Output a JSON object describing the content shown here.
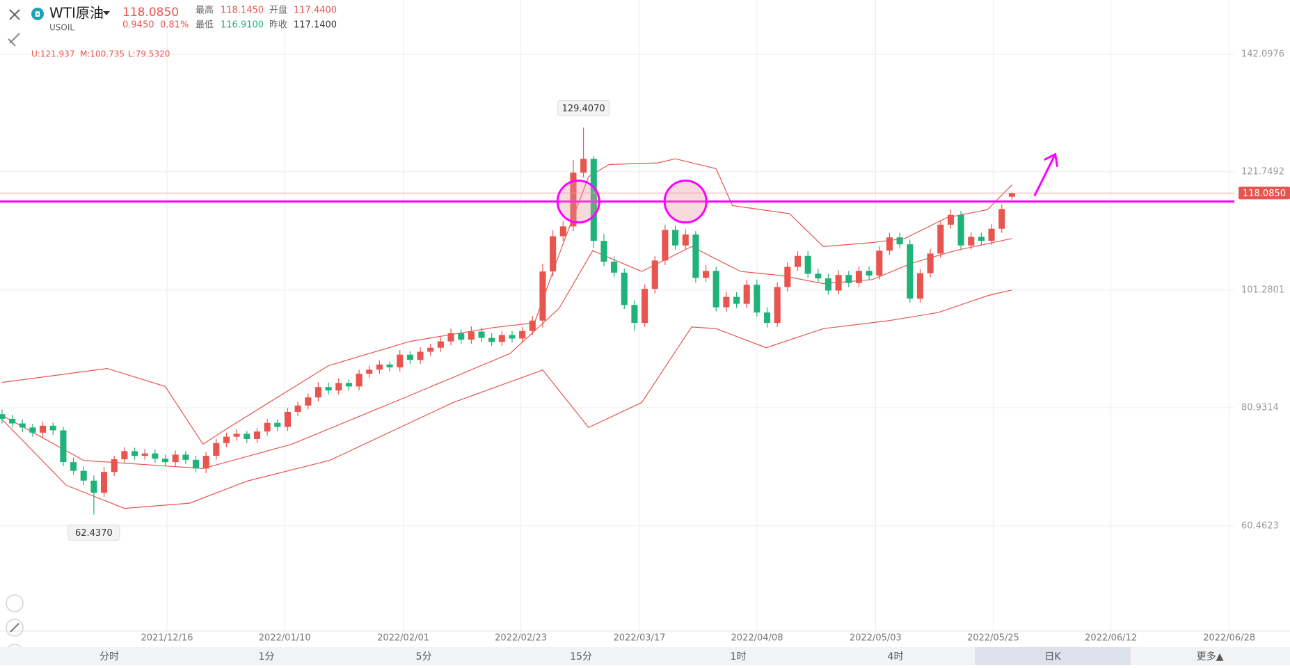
{
  "header": {
    "title": "WTI原油",
    "symbol": "USOIL",
    "price": "118.0850",
    "change": "0.9450",
    "change_pct": "0.81%",
    "stats": [
      {
        "label": "最高",
        "value": "118.1450"
      },
      {
        "label": "开盘",
        "value": "117.4400"
      },
      {
        "label": "最低",
        "value": "116.9100"
      },
      {
        "label": "昨收",
        "value": "117.1400"
      }
    ]
  },
  "tabs": [
    "分时",
    "1分",
    "5分",
    "15分",
    "1时",
    "4时",
    "日K",
    "更多▲"
  ],
  "chart_data": {
    "type": "candlestick",
    "band_labels": [
      "U:121.937",
      "M:100.735",
      "L:79.5320"
    ],
    "up_color": "#e8544e",
    "down_color": "#1fb27a",
    "xlim": [
      -0.2,
      120.8
    ],
    "xticks": [
      {
        "value": 16.17,
        "label": "2021/12/16"
      },
      {
        "value": 27.71,
        "label": "2022/01/10"
      },
      {
        "value": 39.33,
        "label": "2022/02/01"
      },
      {
        "value": 50.86,
        "label": "2022/02/23"
      },
      {
        "value": 62.48,
        "label": "2022/03/17"
      },
      {
        "value": 74.01,
        "label": "2022/04/08"
      },
      {
        "value": 85.63,
        "label": "2022/05/03"
      },
      {
        "value": 97.16,
        "label": "2022/05/25"
      },
      {
        "value": 108.7,
        "label": "2022/06/12"
      },
      {
        "value": 120.3,
        "label": "2022/06/28"
      }
    ],
    "ylim": [
      42.25,
      151.49
    ],
    "yticks": [
      142.0976,
      121.7492,
      101.2801,
      80.9314,
      60.4623
    ],
    "grid": true,
    "open": [
      79.8,
      79.0,
      78.2,
      77.5,
      76.6,
      77.8,
      77.0,
      71.5,
      70.0,
      68.3,
      66.2,
      69.8,
      72.0,
      73.4,
      72.6,
      73.0,
      72.1,
      71.5,
      72.8,
      71.9,
      70.4,
      72.6,
      74.8,
      75.9,
      76.4,
      75.5,
      76.8,
      78.3,
      77.6,
      80.2,
      81.3,
      82.7,
      84.5,
      83.9,
      85.2,
      84.6,
      86.8,
      87.5,
      88.4,
      87.9,
      90.1,
      89.2,
      90.6,
      91.3,
      92.4,
      93.8,
      92.7,
      94.1,
      93.0,
      92.3,
      93.5,
      92.9,
      94.2,
      96.0,
      104.5,
      110.6,
      112.3,
      121.6,
      124.0,
      109.8,
      106.2,
      104.3,
      98.7,
      95.6,
      101.5,
      106.4,
      111.7,
      109.0,
      110.9,
      103.4,
      104.6,
      98.3,
      100.1,
      98.9,
      102.2,
      97.4,
      95.6,
      101.8,
      105.3,
      107.2,
      104.1,
      103.3,
      101.2,
      103.9,
      102.5,
      104.6,
      103.8,
      108.1,
      110.4,
      109.2,
      99.8,
      104.2,
      107.6,
      112.6,
      114.3,
      109.0,
      110.5,
      109.8,
      111.9,
      117.44
    ],
    "high": [
      80.6,
      79.7,
      78.9,
      78.1,
      78.5,
      78.4,
      77.6,
      72.3,
      70.8,
      69.2,
      70.7,
      72.6,
      74.1,
      74.0,
      73.8,
      73.7,
      72.8,
      73.5,
      73.4,
      72.6,
      73.3,
      75.5,
      76.6,
      77.2,
      76.9,
      77.4,
      79.0,
      78.9,
      80.9,
      82.0,
      83.4,
      85.3,
      85.3,
      86.0,
      85.8,
      87.5,
      88.2,
      89.1,
      88.9,
      90.9,
      90.7,
      91.4,
      92.0,
      93.1,
      94.6,
      94.5,
      95.0,
      94.8,
      93.8,
      94.2,
      94.2,
      94.9,
      96.8,
      105.8,
      111.6,
      113.2,
      123.8,
      129.407,
      124.5,
      111.0,
      107.1,
      105.0,
      99.5,
      102.3,
      107.2,
      112.6,
      112.5,
      111.8,
      111.5,
      105.6,
      105.3,
      101.0,
      100.9,
      103.0,
      103.1,
      98.3,
      102.6,
      106.1,
      108.0,
      108.0,
      105.0,
      104.1,
      104.7,
      104.6,
      105.4,
      105.4,
      108.9,
      111.2,
      111.2,
      110.0,
      104.9,
      108.4,
      113.4,
      115.2,
      115.0,
      111.3,
      111.2,
      112.7,
      116.1,
      118.145
    ],
    "low": [
      78.2,
      77.5,
      76.7,
      75.9,
      75.8,
      76.2,
      70.8,
      69.3,
      67.5,
      62.437,
      65.5,
      69.1,
      71.3,
      71.9,
      71.9,
      71.4,
      70.8,
      70.8,
      71.2,
      69.7,
      69.6,
      71.9,
      74.1,
      75.2,
      74.8,
      74.8,
      76.1,
      76.9,
      76.9,
      79.5,
      80.6,
      82.0,
      83.2,
      83.2,
      83.9,
      83.9,
      86.1,
      86.8,
      87.2,
      87.2,
      88.5,
      88.5,
      89.9,
      90.6,
      91.7,
      92.0,
      92.0,
      92.3,
      91.6,
      91.6,
      92.2,
      92.2,
      93.5,
      94.8,
      103.6,
      109.8,
      111.5,
      120.8,
      108.6,
      105.4,
      103.5,
      98.0,
      94.3,
      94.9,
      100.7,
      105.6,
      108.3,
      108.3,
      102.6,
      102.7,
      97.6,
      97.5,
      98.2,
      98.2,
      96.7,
      94.8,
      94.9,
      101.1,
      104.6,
      103.4,
      102.6,
      100.5,
      100.5,
      101.8,
      101.8,
      103.0,
      103.1,
      107.4,
      108.5,
      99.1,
      99.1,
      103.5,
      106.9,
      111.9,
      108.3,
      108.3,
      109.1,
      109.1,
      111.2,
      116.91
    ],
    "close": [
      79.0,
      78.2,
      77.5,
      76.6,
      77.8,
      77.0,
      71.5,
      70.0,
      68.3,
      66.2,
      69.8,
      72.0,
      73.4,
      72.6,
      73.0,
      72.1,
      71.5,
      72.8,
      71.9,
      70.4,
      72.6,
      74.8,
      75.9,
      76.4,
      75.5,
      76.8,
      78.3,
      77.6,
      80.2,
      81.3,
      82.7,
      84.5,
      83.9,
      85.2,
      84.6,
      86.8,
      87.5,
      88.4,
      87.9,
      90.1,
      89.2,
      90.6,
      91.3,
      92.4,
      93.8,
      92.7,
      94.1,
      93.0,
      92.3,
      93.5,
      92.9,
      94.2,
      96.0,
      104.5,
      110.6,
      112.3,
      121.6,
      124.0,
      109.8,
      106.2,
      104.3,
      98.7,
      95.6,
      101.5,
      106.4,
      111.7,
      109.0,
      110.9,
      103.4,
      104.6,
      98.3,
      100.1,
      98.9,
      102.2,
      97.4,
      95.6,
      101.8,
      105.3,
      107.2,
      104.1,
      103.3,
      101.2,
      103.9,
      102.5,
      104.6,
      103.8,
      108.1,
      110.4,
      109.2,
      99.8,
      104.2,
      107.6,
      112.6,
      114.3,
      109.0,
      110.5,
      109.8,
      111.9,
      115.3,
      118.085
    ],
    "high_label": "129.4070",
    "low_label": "62.4370",
    "last_label": "118.0850",
    "bands": [
      {
        "color": "#e8544e",
        "x": [
          0,
          10.3,
          16,
          19.7,
          21.6,
          32,
          40,
          48.2,
          52.2,
          54.6,
          57.5,
          59.5,
          64.3,
          66,
          70,
          71.6,
          77.2,
          80.5,
          85.3,
          88.5,
          92.6,
          96.6,
          99
        ],
        "values": [
          85.3,
          87.7,
          84.6,
          74.6,
          76.8,
          88.2,
          92.4,
          94.8,
          95.6,
          107.4,
          120.9,
          123.0,
          123.3,
          124.0,
          122.3,
          115.9,
          114.5,
          108.8,
          109.5,
          110.2,
          113.8,
          115.2,
          119.5
        ]
      },
      {
        "color": "#e8544e",
        "x": [
          0,
          8,
          19.7,
          28.4,
          40.2,
          49.8,
          54.6,
          57.9,
          62.7,
          67.6,
          72.4,
          76.4,
          80.5,
          85.3,
          89.3,
          93.4,
          99
        ],
        "values": [
          79.6,
          71.8,
          70.4,
          74.6,
          83.2,
          90.3,
          98.1,
          108.1,
          104.5,
          108.8,
          104.5,
          103.8,
          102.4,
          103.1,
          106.0,
          108.1,
          110.2
        ]
      },
      {
        "color": "#e8544e",
        "x": [
          0,
          6.3,
          12,
          18.4,
          24,
          32.1,
          44.2,
          53,
          57.5,
          62.7,
          67.6,
          70,
          74.9,
          80.5,
          87,
          91.8,
          96.6,
          99
        ],
        "values": [
          78.9,
          67.5,
          63.5,
          64.4,
          68.2,
          71.8,
          81.8,
          87.45,
          77.5,
          81.8,
          94.9,
          94.6,
          91.3,
          94.6,
          96.0,
          97.4,
          100.3,
          101.3
        ]
      }
    ],
    "drawn_level": 116.6,
    "drawn_color": "#ff00ff"
  }
}
